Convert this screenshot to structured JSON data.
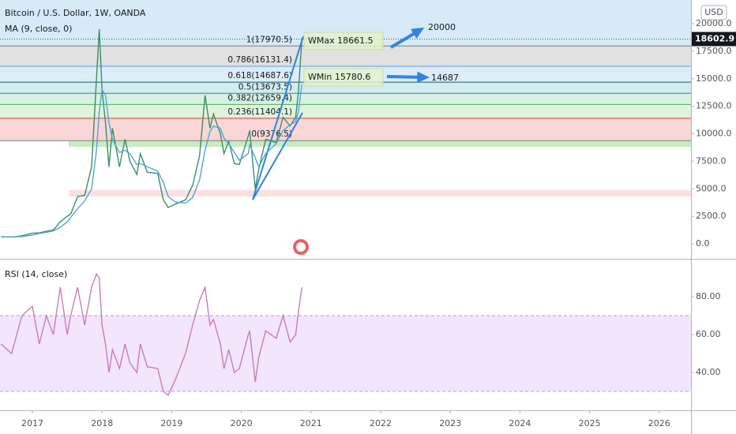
{
  "chart_data": [
    {
      "type": "line",
      "title": "Bitcoin / U.S. Dollar, 1W, OANDA",
      "currency": "USD",
      "x": [
        2016.55,
        2016.7,
        2016.85,
        2017.0,
        2017.1,
        2017.2,
        2017.3,
        2017.4,
        2017.5,
        2017.55,
        2017.65,
        2017.75,
        2017.85,
        2017.92,
        2017.96,
        2018.0,
        2018.05,
        2018.1,
        2018.15,
        2018.25,
        2018.33,
        2018.4,
        2018.5,
        2018.55,
        2018.65,
        2018.8,
        2018.88,
        2018.95,
        2019.05,
        2019.2,
        2019.3,
        2019.4,
        2019.48,
        2019.55,
        2019.6,
        2019.7,
        2019.75,
        2019.82,
        2019.9,
        2019.97,
        2020.1,
        2020.12,
        2020.2,
        2020.25,
        2020.35,
        2020.5,
        2020.6,
        2020.7,
        2020.78,
        2020.82,
        2020.87
      ],
      "series": [
        {
          "color": "#3d8f63",
          "values": [
            650,
            620,
            730,
            960,
            1000,
            1150,
            1250,
            2000,
            2500,
            2700,
            4300,
            4400,
            7000,
            15000,
            19500,
            14000,
            11000,
            7000,
            10500,
            7000,
            9500,
            7500,
            6300,
            8200,
            6500,
            6400,
            4000,
            3300,
            3600,
            4000,
            5300,
            8000,
            13500,
            10500,
            11800,
            10000,
            8200,
            9300,
            7300,
            7200,
            9800,
            10300,
            5000,
            6800,
            9500,
            9200,
            11500,
            10700,
            11500,
            13800,
            18600
          ]
        },
        {
          "name": "MA (9, close, 0)",
          "color": "#4fa3e0",
          "values": [
            640,
            630,
            660,
            800,
            950,
            1050,
            1180,
            1500,
            2000,
            2400,
            3200,
            3900,
            5000,
            8500,
            12000,
            14000,
            13500,
            11000,
            9500,
            8300,
            8500,
            8200,
            7200,
            7300,
            7000,
            6600,
            5600,
            4300,
            3800,
            3700,
            4200,
            5800,
            8500,
            10200,
            10700,
            10500,
            9600,
            9100,
            8300,
            7600,
            8200,
            9000,
            7800,
            7000,
            8200,
            9100,
            10300,
            10800,
            11100,
            12000,
            14500
          ]
        }
      ],
      "last_price": 18602.9,
      "xlim": [
        2016.535,
        2026.456
      ],
      "xticks": [
        2017,
        2018,
        2019,
        2020,
        2021,
        2022,
        2023,
        2024,
        2025,
        2026
      ],
      "ylim": [
        -1360,
        22150
      ],
      "yticks": [
        {
          "value": 0,
          "label": "0.0"
        },
        {
          "value": 2500,
          "label": "2500.0"
        },
        {
          "value": 5000,
          "label": "5000.0"
        },
        {
          "value": 7500,
          "label": "7500.0"
        },
        {
          "value": 10000,
          "label": "10000.0"
        },
        {
          "value": 12500,
          "label": "12500.0"
        },
        {
          "value": 15000,
          "label": "15000.0"
        },
        {
          "value": 17500,
          "label": "17500.0"
        },
        {
          "value": 20000,
          "label": "20000.0"
        }
      ],
      "fib_levels": [
        {
          "value": 17970.5,
          "label": "1(17970.5)",
          "color": "#787b86"
        },
        {
          "value": 16131.4,
          "label": "0.786(16131.4)",
          "color": "#5b9cf6"
        },
        {
          "value": 14687.6,
          "label": "0.618(14687.6)",
          "color": "#0f5c5c"
        },
        {
          "value": 13673.5,
          "label": "0.5(13673.5)",
          "color": "#089981"
        },
        {
          "value": 12659.4,
          "label": "0.382(12659.4)",
          "color": "#4caf50"
        },
        {
          "value": 11404.1,
          "label": "0.236(11404.1)",
          "color": "#e53935"
        },
        {
          "value": 9376.5,
          "label": "0(9376.5)",
          "color": "#787b86"
        }
      ],
      "fib_fills": [
        "#dcdcdc",
        "#d6eaf8",
        "#cde8ee",
        "#d2efdd",
        "#daf1d6",
        "#f8d0d0"
      ],
      "zones": [
        {
          "from": 8800,
          "to": 9376.5,
          "color": "#c8ecc0"
        },
        {
          "from": 4300,
          "to": 4900,
          "color": "#fbe0e0"
        }
      ],
      "annotations": [
        {
          "text": "WMax 18661.5",
          "color": "#4caf50"
        },
        {
          "text": "WMin 15780.6",
          "color": "#e53935"
        },
        {
          "text": "20000",
          "color": "#2e86de"
        },
        {
          "text": "14687",
          "color": "#2e86de"
        }
      ]
    },
    {
      "type": "line",
      "title": "RSI (14, close)",
      "x": [
        2016.55,
        2016.7,
        2016.85,
        2017.0,
        2017.1,
        2017.2,
        2017.3,
        2017.4,
        2017.5,
        2017.55,
        2017.65,
        2017.75,
        2017.85,
        2017.92,
        2017.96,
        2018.0,
        2018.05,
        2018.1,
        2018.15,
        2018.25,
        2018.33,
        2018.4,
        2018.5,
        2018.55,
        2018.65,
        2018.8,
        2018.88,
        2018.95,
        2019.05,
        2019.2,
        2019.3,
        2019.4,
        2019.48,
        2019.55,
        2019.6,
        2019.7,
        2019.75,
        2019.82,
        2019.9,
        2019.97,
        2020.1,
        2020.12,
        2020.2,
        2020.25,
        2020.35,
        2020.5,
        2020.6,
        2020.7,
        2020.78,
        2020.82,
        2020.87
      ],
      "series": [
        {
          "color": "#c77dba",
          "values": [
            55,
            50,
            70,
            75,
            55,
            70,
            60,
            85,
            60,
            70,
            85,
            65,
            85,
            92,
            90,
            65,
            55,
            40,
            52,
            42,
            55,
            45,
            40,
            55,
            43,
            42,
            30,
            28,
            36,
            50,
            65,
            78,
            85,
            65,
            68,
            55,
            42,
            52,
            40,
            42,
            60,
            62,
            35,
            48,
            62,
            58,
            70,
            56,
            60,
            72,
            85
          ]
        }
      ],
      "xlim": [
        2016.535,
        2026.456
      ],
      "ylim": [
        20,
        99.2
      ],
      "yticks": [
        {
          "value": 40,
          "label": "40.00"
        },
        {
          "value": 60,
          "label": "60.00"
        },
        {
          "value": 80,
          "label": "80.00"
        }
      ],
      "band": [
        30,
        70
      ],
      "band_color": "#f3e5fb",
      "band_line_color": "#b39ddb"
    }
  ]
}
